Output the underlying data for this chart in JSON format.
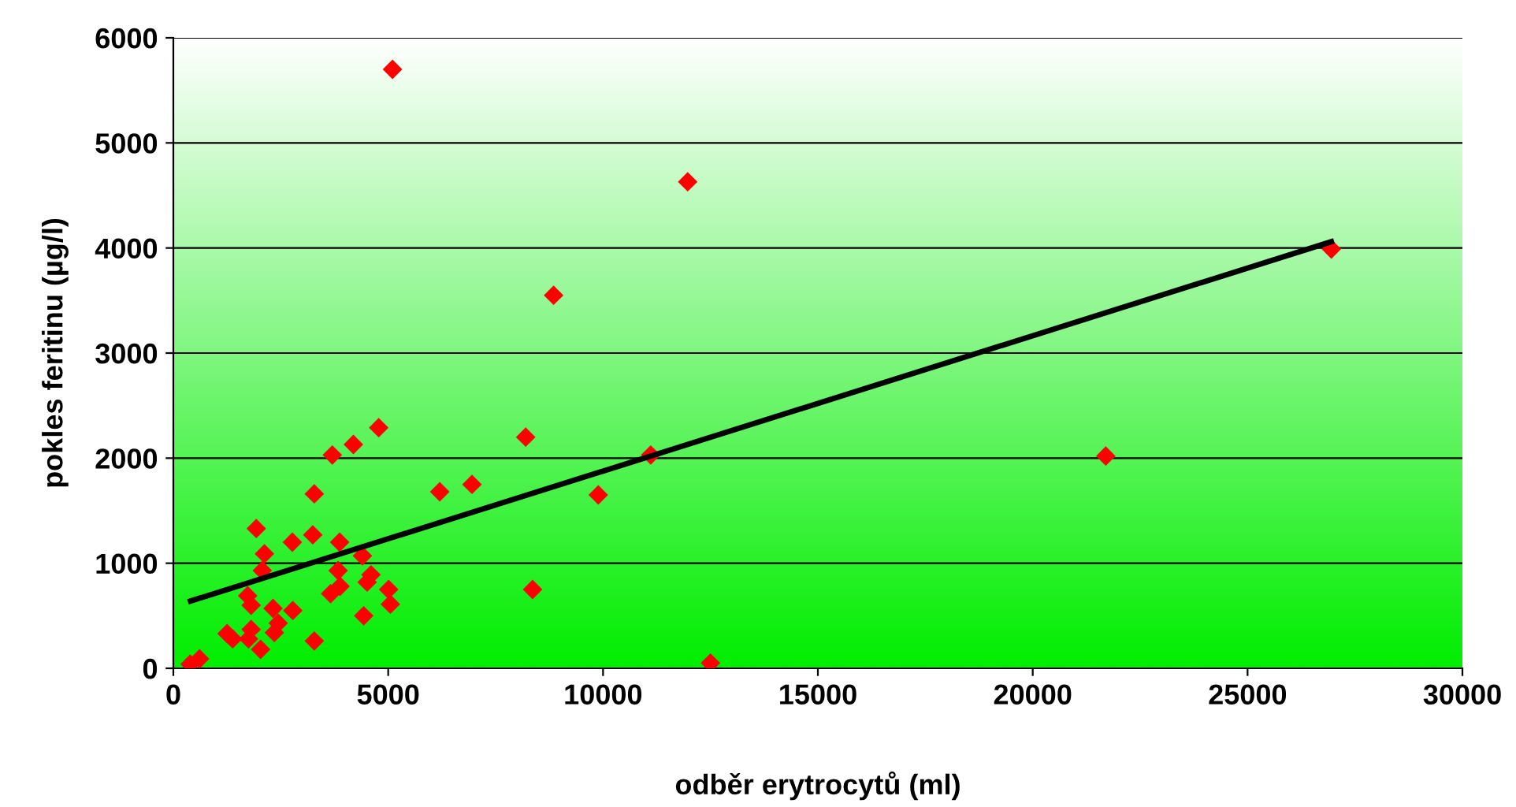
{
  "chart_data": {
    "type": "scatter",
    "xlabel": "odběr erytrocytů (ml)",
    "ylabel": "pokles feritinu (µg/l)",
    "xlim": [
      0,
      30000
    ],
    "xticks": [
      0,
      5000,
      10000,
      15000,
      20000,
      25000,
      30000
    ],
    "ylim": [
      0,
      6000
    ],
    "yticks": [
      0,
      1000,
      2000,
      3000,
      4000,
      5000,
      6000
    ],
    "grid": "y",
    "legend": false,
    "marker": "diamond",
    "series": [
      {
        "color": "#ff0000",
        "x": [
          4780,
          4190,
          3700,
          3280,
          6200,
          6950,
          1930,
          3245,
          2770,
          3870,
          2120,
          4400,
          2070,
          3835,
          4600,
          4510,
          5010,
          3880,
          3660,
          1730,
          1810,
          5050,
          2320,
          2780,
          4430,
          2440,
          1250,
          1810,
          2350,
          1380,
          1750,
          3280,
          2030,
          610,
          390,
          5100,
          11970,
          8850,
          9890,
          11110,
          8360,
          12500,
          8200,
          21700,
          26950
        ],
        "values": [
          2290,
          2130,
          2030,
          1660,
          1680,
          1750,
          1330,
          1270,
          1200,
          1200,
          1090,
          1070,
          930,
          930,
          890,
          820,
          750,
          780,
          710,
          690,
          600,
          610,
          570,
          550,
          500,
          430,
          330,
          370,
          340,
          280,
          280,
          260,
          180,
          90,
          40,
          5700,
          4630,
          3550,
          1650,
          2030,
          750,
          50,
          2200,
          2020,
          3990
        ]
      },
      {
        "type": "line",
        "color": "#000000",
        "marker": "none",
        "line_style": "solid",
        "x": [
          400,
          26950
        ],
        "values": [
          640,
          4060
        ]
      }
    ]
  }
}
